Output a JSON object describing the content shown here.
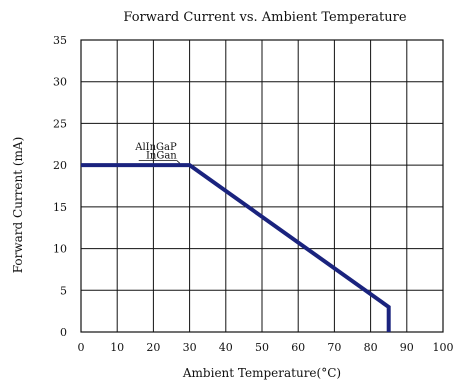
{
  "chart_data": {
    "type": "line",
    "title": "Forward  Current vs. Ambient Temperature",
    "xlabel": "Ambient Temperature(°C)",
    "ylabel": "Forward Current (mA)",
    "xlim": [
      0,
      100
    ],
    "ylim": [
      0,
      35
    ],
    "xticks": [
      0,
      10,
      20,
      30,
      40,
      50,
      60,
      70,
      80,
      90,
      100
    ],
    "yticks": [
      0,
      5,
      10,
      15,
      20,
      25,
      30,
      35
    ],
    "grid": true,
    "series": [
      {
        "x": [
          0,
          30,
          85,
          85
        ],
        "y": [
          20,
          20,
          3,
          0
        ],
        "color": "#1a237e"
      }
    ],
    "annotations": [
      {
        "text": "AlInGaP",
        "x": 27,
        "y": 21.8
      },
      {
        "text": "InGan",
        "x": 27,
        "y": 20.8
      }
    ]
  }
}
